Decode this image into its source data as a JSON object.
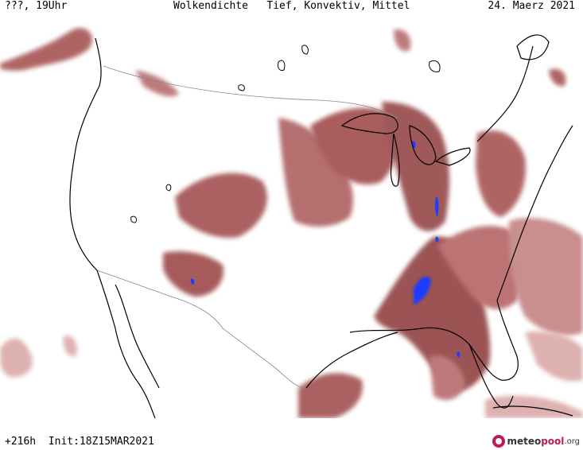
{
  "header": {
    "left": "???, 19Uhr",
    "title": "Wolkendichte   Tief, Konvektiv, Mittel",
    "date": "24. Maerz 2021"
  },
  "footer": {
    "run_info": "+216h  Init:18Z15MAR2021",
    "logo_a": "meteo",
    "logo_b": "pool",
    "logo_c": ".org"
  },
  "legend_colors": {
    "cloud_dark": "#8e3b3b",
    "cloud_mid": "#b05a5a",
    "cloud_light": "#d9a3a3",
    "convective": "#1f3cff",
    "coastline": "#000000",
    "border": "#888888"
  }
}
